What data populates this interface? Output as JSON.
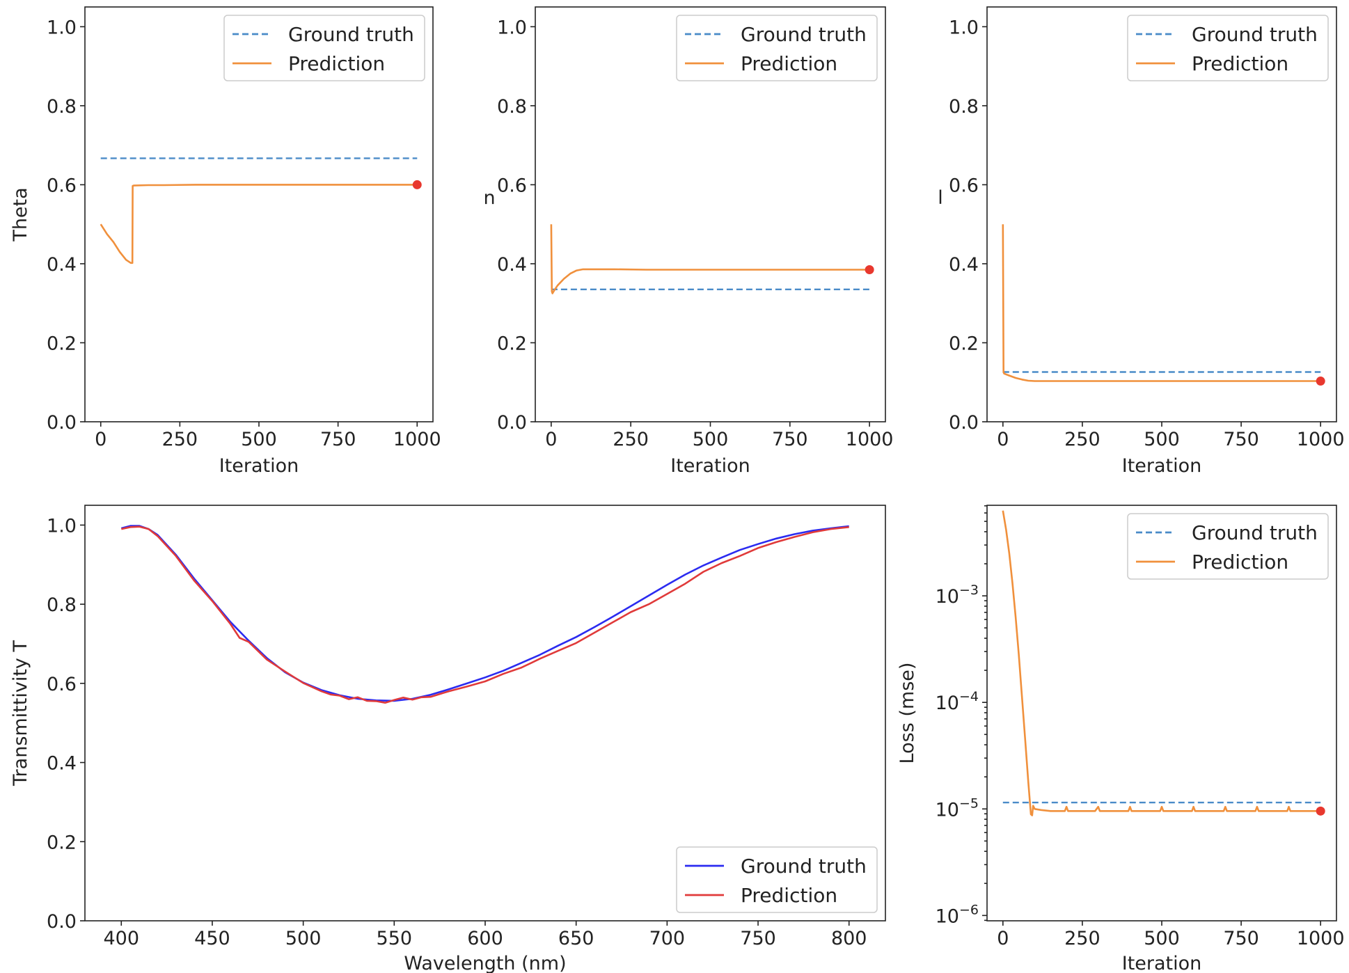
{
  "chart_data": [
    {
      "type": "line",
      "id": "theta",
      "ylabel": "Theta",
      "xlabel": "Iteration",
      "xlim": [
        -50,
        1050
      ],
      "ylim": [
        0.0,
        1.05
      ],
      "xticks": [
        0,
        250,
        500,
        750,
        1000
      ],
      "xtick_labels": [
        "0",
        "250",
        "500",
        "750",
        "1000"
      ],
      "yticks": [
        0.0,
        0.2,
        0.4,
        0.6,
        0.8,
        1.0
      ],
      "ytick_labels": [
        "0.0",
        "0.2",
        "0.4",
        "0.6",
        "0.8",
        "1.0"
      ],
      "legend": {
        "position": "top-right",
        "entries": [
          "Ground truth",
          "Prediction"
        ]
      },
      "series": [
        {
          "name": "Ground truth",
          "style": "dashed",
          "color": "#4a8bc8",
          "x": [
            0,
            1000
          ],
          "y": [
            0.667,
            0.667
          ]
        },
        {
          "name": "Prediction",
          "style": "solid",
          "color": "#f0903c",
          "x": [
            0,
            20,
            40,
            60,
            80,
            95,
            100,
            101,
            104,
            150,
            200,
            300,
            400,
            500,
            600,
            700,
            800,
            900,
            1000
          ],
          "y": [
            0.5,
            0.475,
            0.455,
            0.43,
            0.41,
            0.402,
            0.402,
            0.597,
            0.598,
            0.599,
            0.599,
            0.6,
            0.6,
            0.6,
            0.6,
            0.6,
            0.6,
            0.6,
            0.6
          ]
        }
      ],
      "endpoint": {
        "x": 1000,
        "y": 0.6,
        "color": "#e8382e"
      }
    },
    {
      "type": "line",
      "id": "n",
      "ylabel": "n",
      "xlabel": "Iteration",
      "xlim": [
        -50,
        1050
      ],
      "ylim": [
        0.0,
        1.05
      ],
      "xticks": [
        0,
        250,
        500,
        750,
        1000
      ],
      "xtick_labels": [
        "0",
        "250",
        "500",
        "750",
        "1000"
      ],
      "yticks": [
        0.0,
        0.2,
        0.4,
        0.6,
        0.8,
        1.0
      ],
      "ytick_labels": [
        "0.0",
        "0.2",
        "0.4",
        "0.6",
        "0.8",
        "1.0"
      ],
      "legend": {
        "position": "top-right",
        "entries": [
          "Ground truth",
          "Prediction"
        ]
      },
      "series": [
        {
          "name": "Ground truth",
          "style": "dashed",
          "color": "#4a8bc8",
          "x": [
            0,
            1000
          ],
          "y": [
            0.335,
            0.335
          ]
        },
        {
          "name": "Prediction",
          "style": "solid",
          "color": "#f0903c",
          "x": [
            0,
            2,
            4,
            10,
            20,
            40,
            60,
            80,
            100,
            150,
            200,
            300,
            400,
            500,
            600,
            700,
            800,
            900,
            1000
          ],
          "y": [
            0.5,
            0.33,
            0.325,
            0.333,
            0.345,
            0.362,
            0.375,
            0.383,
            0.386,
            0.386,
            0.386,
            0.385,
            0.385,
            0.385,
            0.385,
            0.385,
            0.385,
            0.385,
            0.385
          ]
        }
      ],
      "endpoint": {
        "x": 1000,
        "y": 0.385,
        "color": "#e8382e"
      }
    },
    {
      "type": "line",
      "id": "l",
      "ylabel": "l",
      "xlabel": "Iteration",
      "xlim": [
        -50,
        1050
      ],
      "ylim": [
        0.0,
        1.05
      ],
      "xticks": [
        0,
        250,
        500,
        750,
        1000
      ],
      "xtick_labels": [
        "0",
        "250",
        "500",
        "750",
        "1000"
      ],
      "yticks": [
        0.0,
        0.2,
        0.4,
        0.6,
        0.8,
        1.0
      ],
      "ytick_labels": [
        "0.0",
        "0.2",
        "0.4",
        "0.6",
        "0.8",
        "1.0"
      ],
      "legend": {
        "position": "top-right",
        "entries": [
          "Ground truth",
          "Prediction"
        ]
      },
      "series": [
        {
          "name": "Ground truth",
          "style": "dashed",
          "color": "#4a8bc8",
          "x": [
            0,
            1000
          ],
          "y": [
            0.126,
            0.126
          ]
        },
        {
          "name": "Prediction",
          "style": "solid",
          "color": "#f0903c",
          "x": [
            0,
            2,
            4,
            20,
            40,
            60,
            80,
            100,
            150,
            200,
            300,
            400,
            500,
            600,
            700,
            800,
            900,
            1000
          ],
          "y": [
            0.5,
            0.125,
            0.122,
            0.117,
            0.111,
            0.107,
            0.104,
            0.103,
            0.103,
            0.103,
            0.103,
            0.103,
            0.103,
            0.103,
            0.103,
            0.103,
            0.103,
            0.103
          ]
        }
      ],
      "endpoint": {
        "x": 1000,
        "y": 0.103,
        "color": "#e8382e"
      }
    },
    {
      "type": "line",
      "id": "transmittivity",
      "ylabel": "Transmittivity T",
      "xlabel": "Wavelength (nm)",
      "xlim": [
        380,
        820
      ],
      "ylim": [
        0.0,
        1.05
      ],
      "xticks": [
        400,
        450,
        500,
        550,
        600,
        650,
        700,
        750,
        800
      ],
      "xtick_labels": [
        "400",
        "450",
        "500",
        "550",
        "600",
        "650",
        "700",
        "750",
        "800"
      ],
      "yticks": [
        0.0,
        0.2,
        0.4,
        0.6,
        0.8,
        1.0
      ],
      "ytick_labels": [
        "0.0",
        "0.2",
        "0.4",
        "0.6",
        "0.8",
        "1.0"
      ],
      "legend": {
        "position": "bottom-right",
        "entries": [
          "Ground truth",
          "Prediction"
        ]
      },
      "series": [
        {
          "name": "Ground truth",
          "style": "solid",
          "color": "#2b2bf0",
          "x": [
            400,
            405,
            410,
            415,
            420,
            430,
            440,
            450,
            460,
            470,
            480,
            490,
            500,
            510,
            520,
            530,
            540,
            550,
            560,
            570,
            580,
            590,
            600,
            610,
            620,
            630,
            640,
            650,
            660,
            670,
            680,
            690,
            700,
            710,
            720,
            730,
            740,
            750,
            760,
            770,
            780,
            790,
            800
          ],
          "y": [
            0.992,
            0.998,
            0.998,
            0.99,
            0.975,
            0.925,
            0.865,
            0.81,
            0.755,
            0.708,
            0.664,
            0.628,
            0.602,
            0.583,
            0.57,
            0.561,
            0.557,
            0.556,
            0.561,
            0.571,
            0.585,
            0.6,
            0.615,
            0.632,
            0.652,
            0.672,
            0.695,
            0.717,
            0.742,
            0.768,
            0.795,
            0.822,
            0.849,
            0.875,
            0.898,
            0.918,
            0.937,
            0.952,
            0.966,
            0.977,
            0.986,
            0.992,
            0.997
          ]
        },
        {
          "name": "Prediction",
          "style": "solid",
          "color": "#e03a3a",
          "x": [
            400,
            405,
            410,
            415,
            420,
            430,
            440,
            450,
            460,
            465,
            470,
            480,
            490,
            500,
            510,
            515,
            520,
            525,
            530,
            535,
            540,
            545,
            550,
            555,
            560,
            565,
            570,
            580,
            590,
            600,
            610,
            620,
            630,
            640,
            650,
            660,
            670,
            680,
            690,
            700,
            710,
            720,
            730,
            740,
            750,
            760,
            770,
            780,
            790,
            800
          ],
          "y": [
            0.99,
            0.995,
            0.996,
            0.99,
            0.972,
            0.922,
            0.86,
            0.808,
            0.75,
            0.715,
            0.705,
            0.66,
            0.63,
            0.601,
            0.58,
            0.572,
            0.569,
            0.56,
            0.565,
            0.556,
            0.555,
            0.551,
            0.558,
            0.564,
            0.559,
            0.565,
            0.566,
            0.58,
            0.592,
            0.605,
            0.624,
            0.64,
            0.662,
            0.682,
            0.702,
            0.728,
            0.754,
            0.78,
            0.8,
            0.826,
            0.852,
            0.882,
            0.904,
            0.922,
            0.942,
            0.957,
            0.97,
            0.982,
            0.99,
            0.995
          ]
        }
      ]
    },
    {
      "type": "line",
      "id": "loss",
      "yscale": "log",
      "ylabel": "Loss (mse)",
      "xlabel": "Iteration",
      "xlim": [
        -50,
        1050
      ],
      "ylim_log10": [
        -6.05,
        -2.15
      ],
      "xticks": [
        0,
        250,
        500,
        750,
        1000
      ],
      "xtick_labels": [
        "0",
        "250",
        "500",
        "750",
        "1000"
      ],
      "yticks_log10": [
        -6,
        -5,
        -4,
        -3
      ],
      "ytick_labels": [
        {
          "base": "10",
          "exp": "−6"
        },
        {
          "base": "10",
          "exp": "−5"
        },
        {
          "base": "10",
          "exp": "−4"
        },
        {
          "base": "10",
          "exp": "−3"
        }
      ],
      "legend": {
        "position": "top-right",
        "entries": [
          "Ground truth",
          "Prediction"
        ]
      },
      "series": [
        {
          "name": "Ground truth",
          "style": "dashed",
          "color": "#4a8bc8",
          "x": [
            0,
            1000
          ],
          "y_log10": [
            -4.94,
            -4.94
          ]
        },
        {
          "name": "Prediction",
          "style": "solid",
          "color": "#f0903c",
          "x": [
            0,
            10,
            20,
            30,
            40,
            50,
            60,
            70,
            80,
            88,
            92,
            95,
            100,
            120,
            150,
            195,
            200,
            205,
            290,
            300,
            305,
            395,
            400,
            405,
            495,
            500,
            505,
            595,
            600,
            605,
            695,
            700,
            705,
            795,
            800,
            805,
            895,
            900,
            905,
            1000
          ],
          "y_log10": [
            -2.2,
            -2.38,
            -2.6,
            -2.88,
            -3.2,
            -3.55,
            -3.95,
            -4.35,
            -4.75,
            -5.05,
            -5.06,
            -4.97,
            -5.0,
            -5.01,
            -5.02,
            -5.02,
            -4.98,
            -5.02,
            -5.02,
            -4.98,
            -5.02,
            -5.02,
            -4.98,
            -5.02,
            -5.02,
            -4.98,
            -5.02,
            -5.02,
            -4.98,
            -5.02,
            -5.02,
            -4.98,
            -5.02,
            -5.02,
            -4.98,
            -5.02,
            -5.02,
            -4.98,
            -5.02,
            -5.02
          ]
        }
      ],
      "endpoint": {
        "x": 1000,
        "y_log10": -5.02,
        "color": "#e8382e"
      }
    }
  ]
}
